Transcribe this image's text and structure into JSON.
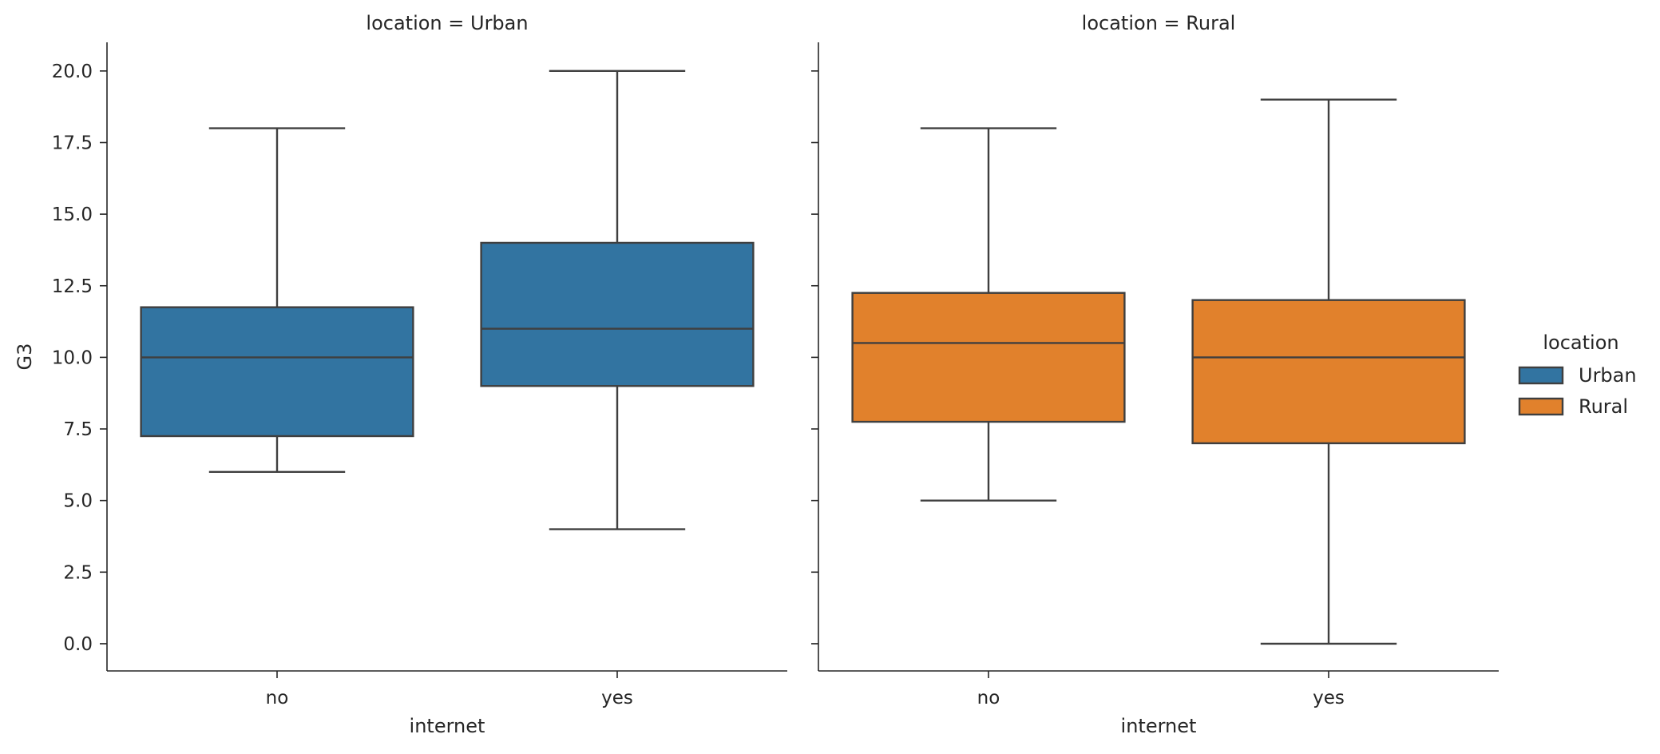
{
  "chart_data": {
    "type": "box",
    "facet_variable": "location",
    "ylabel": "G3",
    "ylim": [
      -0.95,
      21.0
    ],
    "yticks": [
      0.0,
      2.5,
      5.0,
      7.5,
      10.0,
      12.5,
      15.0,
      17.5,
      20.0
    ],
    "ytick_labels": [
      "0.0",
      "2.5",
      "5.0",
      "7.5",
      "10.0",
      "12.5",
      "15.0",
      "17.5",
      "20.0"
    ],
    "legend": {
      "title": "location",
      "placement": "right",
      "entries": [
        {
          "label": "Urban",
          "color": "#3274a1"
        },
        {
          "label": "Rural",
          "color": "#e1812c"
        }
      ]
    },
    "panels": [
      {
        "title": "location = Urban",
        "xlabel": "internet",
        "categories": [
          "no",
          "yes"
        ],
        "color": "#3274a1",
        "boxes": [
          {
            "category": "no",
            "whisker_low": 6.0,
            "q1": 7.25,
            "median": 10.0,
            "q3": 11.75,
            "whisker_high": 18.0
          },
          {
            "category": "yes",
            "whisker_low": 4.0,
            "q1": 9.0,
            "median": 11.0,
            "q3": 14.0,
            "whisker_high": 20.0
          }
        ]
      },
      {
        "title": "location = Rural",
        "xlabel": "internet",
        "categories": [
          "no",
          "yes"
        ],
        "color": "#e1812c",
        "boxes": [
          {
            "category": "no",
            "whisker_low": 5.0,
            "q1": 7.75,
            "median": 10.5,
            "q3": 12.25,
            "whisker_high": 18.0
          },
          {
            "category": "yes",
            "whisker_low": 0.0,
            "q1": 7.0,
            "median": 10.0,
            "q3": 12.0,
            "whisker_high": 19.0
          }
        ]
      }
    ]
  }
}
